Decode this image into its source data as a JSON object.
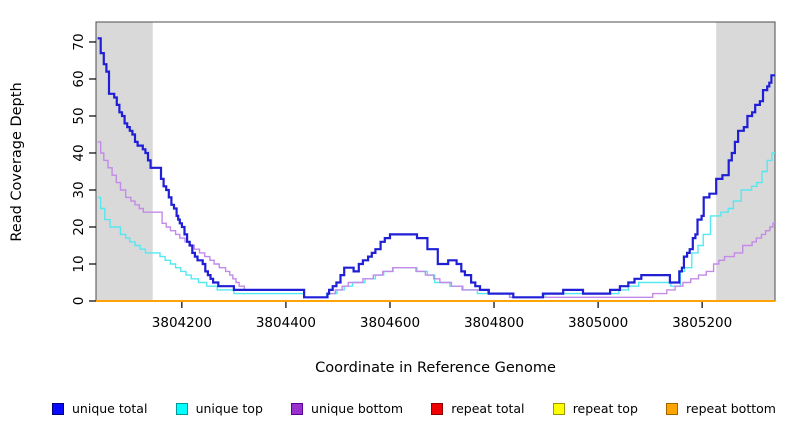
{
  "chart_data": {
    "type": "line",
    "title": "",
    "xlabel": "Coordinate in Reference Genome",
    "ylabel": "Read Coverage Depth",
    "step": "after",
    "xlim": [
      3804035,
      3805340
    ],
    "ylim": [
      0,
      75
    ],
    "x_ticks": [
      3804200,
      3804400,
      3804600,
      3804800,
      3805000,
      3805200
    ],
    "y_ticks": [
      0,
      10,
      20,
      30,
      40,
      50,
      60,
      70
    ],
    "grid": "off",
    "legend_position": "bottom",
    "shaded_regions": [
      {
        "name": "left-masked-region",
        "x0": 3804035,
        "x1": 3804144,
        "color": "#d9d9d9"
      },
      {
        "name": "right-masked-region",
        "x0": 3805227,
        "x1": 3805340,
        "color": "#d9d9d9"
      }
    ],
    "series": [
      {
        "name": "unique total",
        "color": "#1f1fd6",
        "width": 2.2,
        "z": 6,
        "points": [
          [
            3804038,
            71
          ],
          [
            3804044,
            67
          ],
          [
            3804050,
            64
          ],
          [
            3804055,
            62
          ],
          [
            3804060,
            56
          ],
          [
            3804070,
            55
          ],
          [
            3804075,
            53
          ],
          [
            3804080,
            51
          ],
          [
            3804085,
            50
          ],
          [
            3804090,
            48
          ],
          [
            3804095,
            47
          ],
          [
            3804100,
            46
          ],
          [
            3804105,
            45
          ],
          [
            3804110,
            43
          ],
          [
            3804115,
            42
          ],
          [
            3804125,
            41
          ],
          [
            3804130,
            40
          ],
          [
            3804135,
            38
          ],
          [
            3804140,
            36
          ],
          [
            3804160,
            33
          ],
          [
            3804165,
            31
          ],
          [
            3804170,
            30
          ],
          [
            3804175,
            28
          ],
          [
            3804180,
            26
          ],
          [
            3804185,
            25
          ],
          [
            3804190,
            23
          ],
          [
            3804193,
            22
          ],
          [
            3804196,
            21
          ],
          [
            3804200,
            20
          ],
          [
            3804205,
            18
          ],
          [
            3804210,
            16
          ],
          [
            3804215,
            15
          ],
          [
            3804220,
            13
          ],
          [
            3804225,
            12
          ],
          [
            3804230,
            11
          ],
          [
            3804240,
            10
          ],
          [
            3804245,
            8
          ],
          [
            3804250,
            7
          ],
          [
            3804255,
            6
          ],
          [
            3804260,
            5
          ],
          [
            3804270,
            4
          ],
          [
            3804300,
            3
          ],
          [
            3804435,
            1
          ],
          [
            3804480,
            2
          ],
          [
            3804483,
            3
          ],
          [
            3804490,
            4
          ],
          [
            3804497,
            5
          ],
          [
            3804505,
            7
          ],
          [
            3804512,
            9
          ],
          [
            3804530,
            8
          ],
          [
            3804540,
            10
          ],
          [
            3804548,
            11
          ],
          [
            3804558,
            12
          ],
          [
            3804565,
            13
          ],
          [
            3804572,
            14
          ],
          [
            3804582,
            16
          ],
          [
            3804590,
            17
          ],
          [
            3804600,
            18
          ],
          [
            3804652,
            17
          ],
          [
            3804672,
            14
          ],
          [
            3804692,
            10
          ],
          [
            3804712,
            11
          ],
          [
            3804728,
            10
          ],
          [
            3804737,
            8
          ],
          [
            3804744,
            7
          ],
          [
            3804756,
            5
          ],
          [
            3804764,
            4
          ],
          [
            3804773,
            3
          ],
          [
            3804790,
            2
          ],
          [
            3804837,
            1
          ],
          [
            3804894,
            2
          ],
          [
            3804933,
            3
          ],
          [
            3804971,
            2
          ],
          [
            3805023,
            3
          ],
          [
            3805042,
            4
          ],
          [
            3805058,
            5
          ],
          [
            3805070,
            6
          ],
          [
            3805083,
            7
          ],
          [
            3805138,
            5
          ],
          [
            3805156,
            8
          ],
          [
            3805161,
            9
          ],
          [
            3805165,
            12
          ],
          [
            3805171,
            13
          ],
          [
            3805176,
            14
          ],
          [
            3805182,
            17
          ],
          [
            3805187,
            18
          ],
          [
            3805191,
            22
          ],
          [
            3805199,
            23
          ],
          [
            3805203,
            28
          ],
          [
            3805214,
            29
          ],
          [
            3805227,
            33
          ],
          [
            3805239,
            34
          ],
          [
            3805251,
            38
          ],
          [
            3805257,
            40
          ],
          [
            3805263,
            43
          ],
          [
            3805269,
            46
          ],
          [
            3805280,
            47
          ],
          [
            3805287,
            50
          ],
          [
            3805296,
            51
          ],
          [
            3805302,
            53
          ],
          [
            3805311,
            54
          ],
          [
            3805317,
            57
          ],
          [
            3805325,
            58
          ],
          [
            3805329,
            59
          ],
          [
            3805333,
            61
          ]
        ]
      },
      {
        "name": "unique top",
        "color": "#55e8f0",
        "width": 1.4,
        "z": 4,
        "points": [
          [
            3804038,
            28
          ],
          [
            3804044,
            25
          ],
          [
            3804052,
            22
          ],
          [
            3804062,
            20
          ],
          [
            3804082,
            18
          ],
          [
            3804092,
            17
          ],
          [
            3804100,
            16
          ],
          [
            3804110,
            15
          ],
          [
            3804120,
            14
          ],
          [
            3804130,
            13
          ],
          [
            3804158,
            12
          ],
          [
            3804168,
            11
          ],
          [
            3804178,
            10
          ],
          [
            3804188,
            9
          ],
          [
            3804198,
            8
          ],
          [
            3804208,
            7
          ],
          [
            3804218,
            6
          ],
          [
            3804232,
            5
          ],
          [
            3804248,
            4
          ],
          [
            3804268,
            3
          ],
          [
            3804300,
            2
          ],
          [
            3804435,
            1
          ],
          [
            3804478,
            2
          ],
          [
            3804498,
            3
          ],
          [
            3804512,
            4
          ],
          [
            3804528,
            5
          ],
          [
            3804552,
            6
          ],
          [
            3804572,
            7
          ],
          [
            3804588,
            8
          ],
          [
            3804606,
            9
          ],
          [
            3804652,
            8
          ],
          [
            3804672,
            7
          ],
          [
            3804686,
            5
          ],
          [
            3804715,
            4
          ],
          [
            3804738,
            3
          ],
          [
            3804768,
            2
          ],
          [
            3804830,
            1
          ],
          [
            3804898,
            2
          ],
          [
            3805040,
            3
          ],
          [
            3805058,
            4
          ],
          [
            3805078,
            5
          ],
          [
            3805140,
            4
          ],
          [
            3805158,
            8
          ],
          [
            3805166,
            9
          ],
          [
            3805180,
            13
          ],
          [
            3805192,
            15
          ],
          [
            3805202,
            18
          ],
          [
            3805216,
            23
          ],
          [
            3805236,
            24
          ],
          [
            3805250,
            25
          ],
          [
            3805260,
            27
          ],
          [
            3805275,
            30
          ],
          [
            3805295,
            31
          ],
          [
            3805305,
            32
          ],
          [
            3805315,
            35
          ],
          [
            3805325,
            38
          ],
          [
            3805334,
            40
          ]
        ]
      },
      {
        "name": "unique bottom",
        "color": "#c48ae8",
        "width": 1.4,
        "z": 5,
        "points": [
          [
            3804038,
            43
          ],
          [
            3804044,
            40
          ],
          [
            3804050,
            38
          ],
          [
            3804058,
            36
          ],
          [
            3804066,
            34
          ],
          [
            3804074,
            32
          ],
          [
            3804082,
            30
          ],
          [
            3804092,
            28
          ],
          [
            3804102,
            27
          ],
          [
            3804110,
            26
          ],
          [
            3804118,
            25
          ],
          [
            3804126,
            24
          ],
          [
            3804162,
            21
          ],
          [
            3804170,
            20
          ],
          [
            3804178,
            19
          ],
          [
            3804188,
            18
          ],
          [
            3804196,
            17
          ],
          [
            3804206,
            16
          ],
          [
            3804214,
            15
          ],
          [
            3804224,
            14
          ],
          [
            3804234,
            13
          ],
          [
            3804244,
            12
          ],
          [
            3804254,
            11
          ],
          [
            3804262,
            10
          ],
          [
            3804272,
            9
          ],
          [
            3804284,
            8
          ],
          [
            3804292,
            7
          ],
          [
            3804298,
            6
          ],
          [
            3804304,
            5
          ],
          [
            3804310,
            4
          ],
          [
            3804320,
            3
          ],
          [
            3804435,
            1
          ],
          [
            3804480,
            2
          ],
          [
            3804495,
            3
          ],
          [
            3804508,
            4
          ],
          [
            3804520,
            5
          ],
          [
            3804548,
            6
          ],
          [
            3804568,
            7
          ],
          [
            3804586,
            8
          ],
          [
            3804605,
            9
          ],
          [
            3804650,
            8
          ],
          [
            3804668,
            7
          ],
          [
            3804684,
            6
          ],
          [
            3804696,
            5
          ],
          [
            3804718,
            4
          ],
          [
            3804740,
            3
          ],
          [
            3804788,
            2
          ],
          [
            3804830,
            1
          ],
          [
            3805105,
            2
          ],
          [
            3805132,
            3
          ],
          [
            3805148,
            4
          ],
          [
            3805163,
            5
          ],
          [
            3805178,
            6
          ],
          [
            3805193,
            7
          ],
          [
            3805208,
            8
          ],
          [
            3805222,
            10
          ],
          [
            3805232,
            11
          ],
          [
            3805243,
            12
          ],
          [
            3805262,
            13
          ],
          [
            3805278,
            15
          ],
          [
            3805296,
            16
          ],
          [
            3805304,
            17
          ],
          [
            3805314,
            18
          ],
          [
            3805322,
            19
          ],
          [
            3805330,
            20
          ],
          [
            3805336,
            21
          ]
        ]
      },
      {
        "name": "repeat total",
        "color": "#e00000",
        "width": 1.4,
        "z": 1,
        "points": [
          [
            3804035,
            0
          ],
          [
            3805340,
            0
          ]
        ]
      },
      {
        "name": "repeat top",
        "color": "#ffff00",
        "width": 1.4,
        "z": 2,
        "points": [
          [
            3804035,
            0
          ],
          [
            3805340,
            0
          ]
        ]
      },
      {
        "name": "repeat bottom",
        "color": "#ff9f00",
        "width": 1.8,
        "z": 3,
        "points": [
          [
            3804035,
            0
          ],
          [
            3805340,
            0
          ]
        ]
      }
    ],
    "legend": [
      {
        "label": "unique total",
        "fill": "#0a0afa",
        "border": "#000080"
      },
      {
        "label": "unique top",
        "fill": "#00ffff",
        "border": "#009999"
      },
      {
        "label": "unique bottom",
        "fill": "#9932cc",
        "border": "#5c0099"
      },
      {
        "label": "repeat total",
        "fill": "#f00000",
        "border": "#8b0000"
      },
      {
        "label": "repeat top",
        "fill": "#ffff00",
        "border": "#9a9a00"
      },
      {
        "label": "repeat bottom",
        "fill": "#ffa500",
        "border": "#a36200"
      }
    ]
  }
}
